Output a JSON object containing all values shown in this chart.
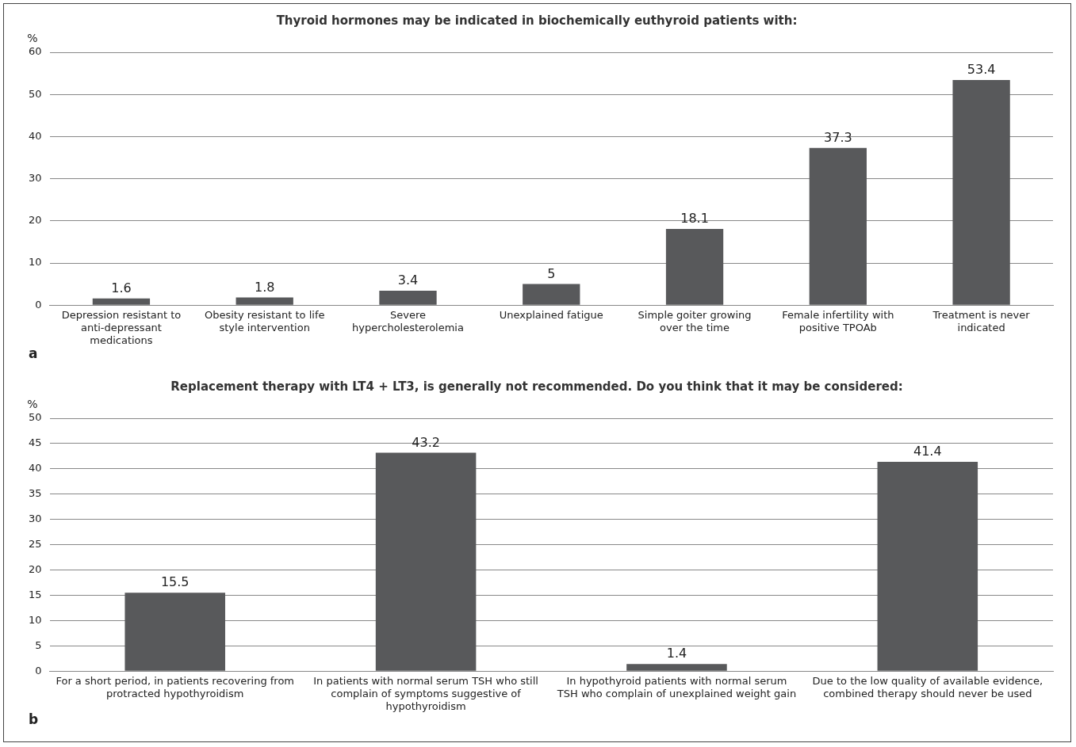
{
  "chart_data": [
    {
      "type": "bar",
      "title": "Thyroid hormones may be indicated in biochemically euthyroid patients with:",
      "ylabel": "%",
      "categories": [
        "Depression resistant to anti-depressant medications",
        "Obesity resistant to life style intervention",
        "Severe hypercholesterolemia",
        "Unexplained fatigue",
        "Simple goiter growing over the time",
        "Female infertility with positive TPOAb",
        "Treatment is never indicated"
      ],
      "values": [
        1.6,
        1.8,
        3.4,
        5,
        18.1,
        37.3,
        53.4
      ],
      "color": "#58595b",
      "ylim": [
        0,
        60
      ],
      "yticks": [
        0,
        10,
        20,
        30,
        40,
        50,
        60
      ],
      "grid": "y",
      "data_labels": true,
      "legend": false,
      "annotations": [
        "a"
      ]
    },
    {
      "type": "bar",
      "title": "Replacement therapy with LT4 + LT3, is generally not recommended. Do you think that it may be considered:",
      "ylabel": "%",
      "categories": [
        "For a short period, in patients recovering from protracted hypothyroidism",
        "In patients with normal serum TSH who still complain of symptoms suggestive of hypothyroidism",
        "In hypothyroid patients with normal serum TSH who complain of unexplained weight gain",
        "Due to the low quality of available evidence, combined therapy should never be used"
      ],
      "values": [
        15.5,
        43.2,
        1.4,
        41.4
      ],
      "color": "#58595b",
      "ylim": [
        0,
        50
      ],
      "yticks": [
        0,
        5,
        10,
        15,
        20,
        25,
        30,
        35,
        40,
        45,
        50
      ],
      "grid": "y",
      "data_labels": true,
      "legend": false,
      "annotations": [
        "b"
      ]
    }
  ]
}
